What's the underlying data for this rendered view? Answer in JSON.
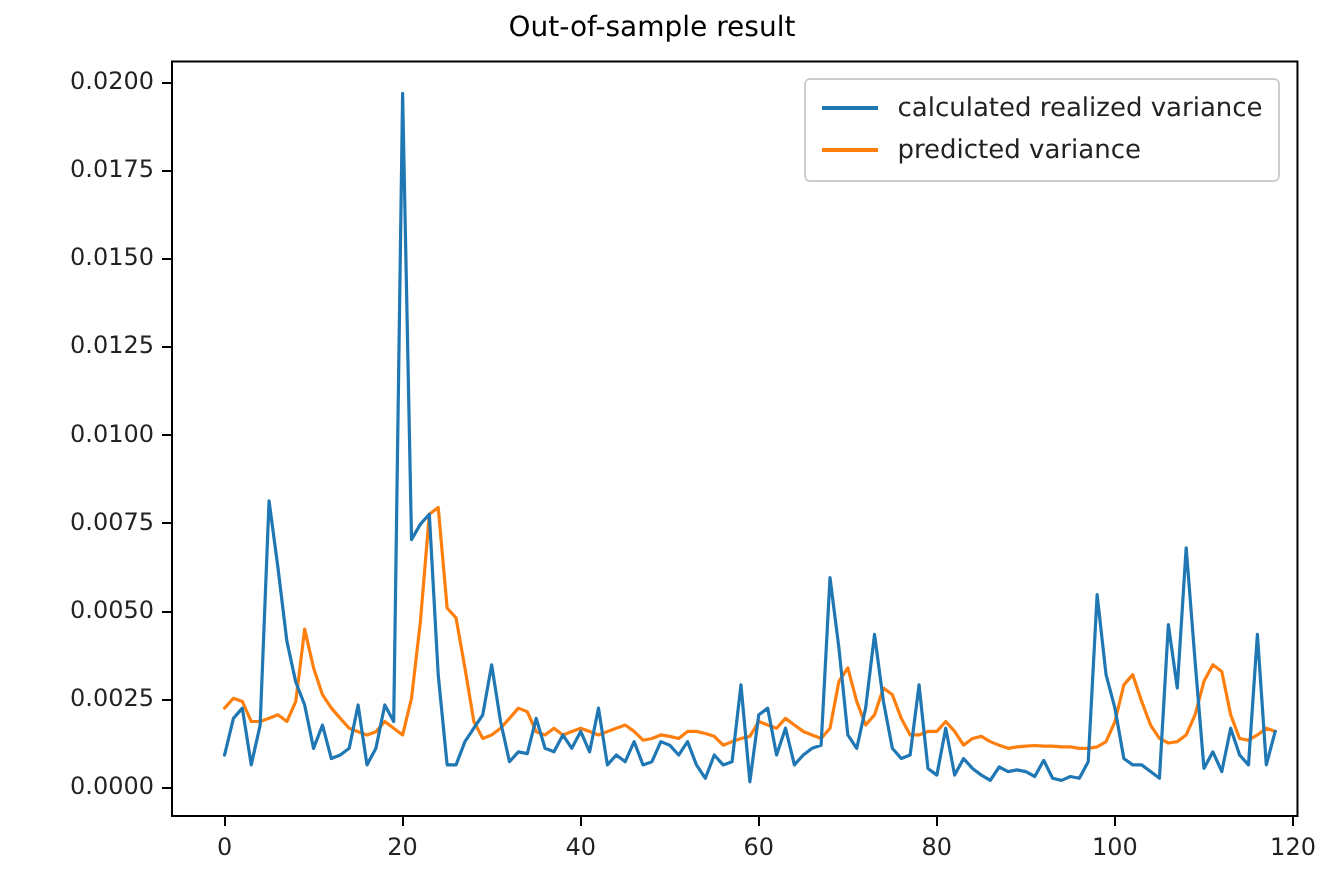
{
  "chart_data": {
    "type": "line",
    "title": "Out-of-sample result",
    "x": [
      0,
      1,
      2,
      3,
      4,
      5,
      6,
      7,
      8,
      9,
      10,
      11,
      12,
      13,
      14,
      15,
      16,
      17,
      18,
      19,
      20,
      21,
      22,
      23,
      24,
      25,
      26,
      27,
      28,
      29,
      30,
      31,
      32,
      33,
      34,
      35,
      36,
      37,
      38,
      39,
      40,
      41,
      42,
      43,
      44,
      45,
      46,
      47,
      48,
      49,
      50,
      51,
      52,
      53,
      54,
      55,
      56,
      57,
      58,
      59,
      60,
      61,
      62,
      63,
      64,
      65,
      66,
      67,
      68,
      69,
      70,
      71,
      72,
      73,
      74,
      75,
      76,
      77,
      78,
      79,
      80,
      81,
      82,
      83,
      84,
      85,
      86,
      87,
      88,
      89,
      90,
      91,
      92,
      93,
      94,
      95,
      96,
      97,
      98,
      99,
      100,
      101,
      102,
      103,
      104,
      105,
      106,
      107,
      108,
      109,
      110,
      111,
      112,
      113,
      114,
      115,
      116,
      117,
      118
    ],
    "series": [
      {
        "name": "calculated realized variance",
        "color": "#1f77b4",
        "values": [
          0.00093,
          0.00197,
          0.00226,
          0.00065,
          0.00178,
          0.00814,
          0.00624,
          0.00416,
          0.003,
          0.00235,
          0.00112,
          0.00178,
          0.00083,
          0.00093,
          0.00112,
          0.00235,
          0.00065,
          0.00112,
          0.00235,
          0.00188,
          0.0197,
          0.00704,
          0.00748,
          0.00776,
          0.0032,
          0.00065,
          0.00065,
          0.00131,
          0.00169,
          0.00207,
          0.00349,
          0.00188,
          0.00074,
          0.00102,
          0.00097,
          0.00197,
          0.00112,
          0.00102,
          0.0015,
          0.00112,
          0.0016,
          0.00102,
          0.00226,
          0.00065,
          0.00093,
          0.00074,
          0.00131,
          0.00065,
          0.00074,
          0.00131,
          0.00121,
          0.00093,
          0.00131,
          0.00065,
          0.00027,
          0.00093,
          0.00065,
          0.00074,
          0.00292,
          0.00017,
          0.00207,
          0.00226,
          0.00093,
          0.00169,
          0.00065,
          0.00093,
          0.00112,
          0.00121,
          0.00596,
          0.00397,
          0.0015,
          0.00112,
          0.00226,
          0.00435,
          0.00245,
          0.00112,
          0.00083,
          0.00093,
          0.00292,
          0.00055,
          0.00036,
          0.00169,
          0.00036,
          0.00083,
          0.00055,
          0.00036,
          0.00021,
          0.00059,
          0.00046,
          0.00051,
          0.00046,
          0.00032,
          0.00078,
          0.00027,
          0.00021,
          0.00032,
          0.00027,
          0.00074,
          0.00548,
          0.00321,
          0.00226,
          0.00083,
          0.00065,
          0.00065,
          0.00046,
          0.00027,
          0.00463,
          0.00283,
          0.00681,
          0.00359,
          0.00055,
          0.00102,
          0.00046,
          0.00169,
          0.00093,
          0.00065,
          0.00435,
          0.00065,
          0.0016
        ]
      },
      {
        "name": "predicted variance",
        "color": "#ff7f0e",
        "values": [
          0.00226,
          0.00254,
          0.00245,
          0.00188,
          0.00188,
          0.00197,
          0.00207,
          0.00188,
          0.00245,
          0.0045,
          0.0034,
          0.00264,
          0.00226,
          0.00197,
          0.00169,
          0.00159,
          0.0015,
          0.00159,
          0.00188,
          0.00169,
          0.0015,
          0.00254,
          0.00472,
          0.00776,
          0.00795,
          0.0051,
          0.00482,
          0.0034,
          0.00188,
          0.0014,
          0.0015,
          0.00169,
          0.00197,
          0.00226,
          0.00216,
          0.00159,
          0.0015,
          0.00169,
          0.0015,
          0.0016,
          0.00169,
          0.0016,
          0.0015,
          0.0016,
          0.00169,
          0.00178,
          0.0016,
          0.00135,
          0.0014,
          0.0015,
          0.00146,
          0.0014,
          0.0016,
          0.0016,
          0.00154,
          0.00146,
          0.00121,
          0.00131,
          0.0014,
          0.00146,
          0.00188,
          0.00178,
          0.00169,
          0.00197,
          0.00178,
          0.0016,
          0.0015,
          0.0014,
          0.00169,
          0.00302,
          0.0034,
          0.00245,
          0.00178,
          0.00207,
          0.00283,
          0.00264,
          0.00197,
          0.0015,
          0.0015,
          0.0016,
          0.0016,
          0.00188,
          0.0016,
          0.00121,
          0.0014,
          0.00146,
          0.00131,
          0.00121,
          0.00112,
          0.00116,
          0.00118,
          0.0012,
          0.00118,
          0.00118,
          0.00116,
          0.00116,
          0.00112,
          0.00112,
          0.00116,
          0.00131,
          0.00188,
          0.00292,
          0.00321,
          0.00245,
          0.00178,
          0.0014,
          0.00127,
          0.00131,
          0.0015,
          0.00207,
          0.00302,
          0.00349,
          0.0033,
          0.00207,
          0.0014,
          0.00135,
          0.0015,
          0.00169,
          0.0016
        ]
      }
    ],
    "xlim": [
      -5.9,
      120.5
    ],
    "xticks": [
      0,
      20,
      40,
      60,
      80,
      100,
      120
    ],
    "ylim": [
      -0.0008,
      0.0206
    ],
    "yticks": [
      {
        "value": 0,
        "label": "0.0000"
      },
      {
        "value": 0.0025,
        "label": "0.0025"
      },
      {
        "value": 0.005,
        "label": "0.0050"
      },
      {
        "value": 0.0075,
        "label": "0.0075"
      },
      {
        "value": 0.01,
        "label": "0.0100"
      },
      {
        "value": 0.0125,
        "label": "0.0125"
      },
      {
        "value": 0.015,
        "label": "0.0150"
      },
      {
        "value": 0.0175,
        "label": "0.0175"
      },
      {
        "value": 0.02,
        "label": "0.0200"
      }
    ],
    "legend": "top right"
  }
}
